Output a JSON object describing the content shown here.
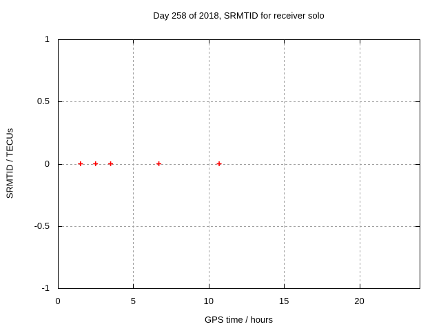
{
  "chart_data": {
    "type": "scatter",
    "title": "Day 258 of 2018, SRMTID for receiver solo",
    "xlabel": "GPS time / hours",
    "ylabel": "SRMTID / TECUs",
    "xlim": [
      0,
      24
    ],
    "ylim": [
      -1,
      1
    ],
    "xticks": [
      0,
      5,
      10,
      15,
      20
    ],
    "xtick_labels": [
      "0",
      "5",
      "10",
      "15",
      "20"
    ],
    "yticks": [
      -1,
      -0.5,
      0,
      0.5,
      1
    ],
    "ytick_labels": [
      "-1",
      "-0.5",
      "0",
      "0.5",
      "1"
    ],
    "grid": true,
    "legend": "none",
    "grid_color": "#a0a0a0",
    "axis_color": "#000000",
    "background_color": "#ffffff",
    "marker": "plus",
    "marker_color": "#ff0000",
    "series": [
      {
        "name": "SRMTID",
        "points": [
          [
            1.5,
            0
          ],
          [
            2.5,
            0
          ],
          [
            3.5,
            0
          ],
          [
            6.7,
            0
          ],
          [
            10.7,
            0
          ]
        ]
      }
    ]
  }
}
